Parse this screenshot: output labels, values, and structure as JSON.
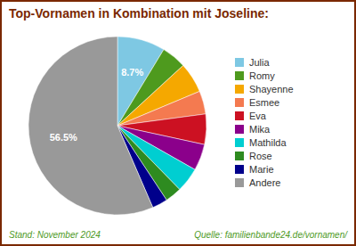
{
  "chart_data": {
    "type": "pie",
    "title": "Top-Vornamen in Kombination mit Joseline:",
    "categories": [
      "Julia",
      "Romy",
      "Shayenne",
      "Esmee",
      "Eva",
      "Mika",
      "Mathilda",
      "Rose",
      "Marie",
      "Andere"
    ],
    "values": [
      8.7,
      4.5,
      5.5,
      4.2,
      5.5,
      4.8,
      4.5,
      3.0,
      2.8,
      56.5
    ],
    "value_labels": [
      "8.7%",
      null,
      null,
      null,
      null,
      null,
      null,
      null,
      null,
      "56.5%"
    ],
    "data_labels": true,
    "colors": [
      "#7ec8e3",
      "#4e9a1e",
      "#f5a800",
      "#f47a50",
      "#cc1122",
      "#8b008b",
      "#00ced1",
      "#2e8b20",
      "#00008b",
      "#999999"
    ],
    "legend": "right",
    "annotations": [
      "Stand: November 2024",
      "Quelle: familienbande24.de/vornamen/"
    ]
  }
}
